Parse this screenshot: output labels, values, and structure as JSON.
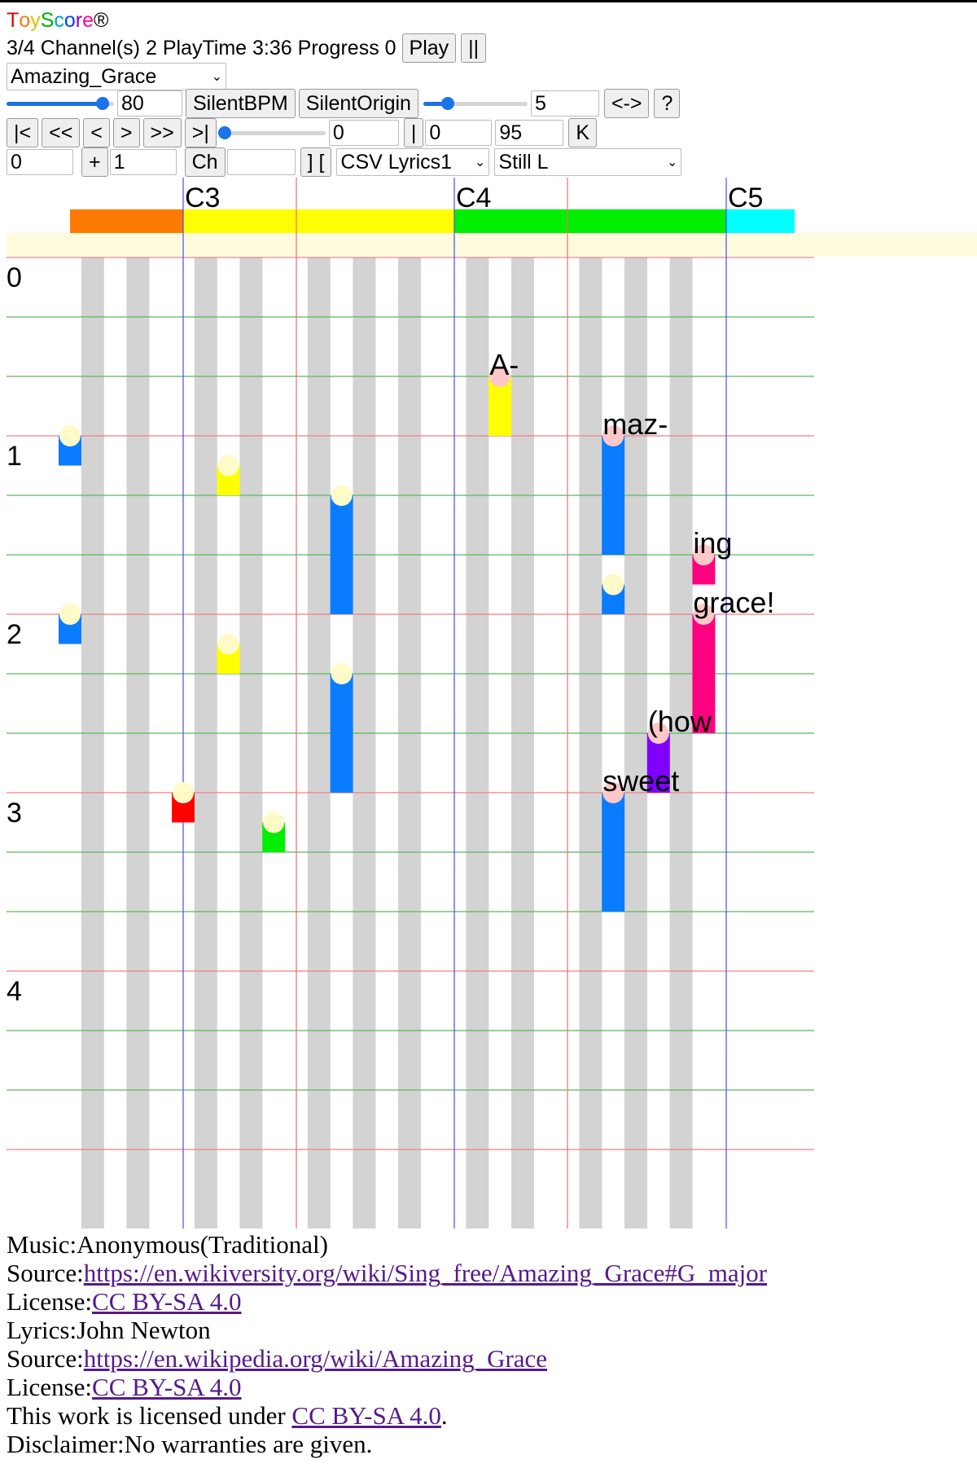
{
  "app": {
    "title_letters": [
      "T",
      "o",
      "y",
      "S",
      "c",
      "o",
      "r",
      "e"
    ],
    "title_colors": [
      "#e00000",
      "#ff7700",
      "#e0c000",
      "#00b000",
      "#00a0d0",
      "#0040ff",
      "#9000d0",
      "#ff00a0"
    ],
    "registered": "®"
  },
  "status": {
    "channels": "3/4",
    "channels_label": "Channel(s)",
    "channel_count": "2",
    "playtime_label": "PlayTime",
    "playtime": "3:36",
    "progress_label": "Progress",
    "progress": "0",
    "play_button": "Play",
    "pause_button": "||"
  },
  "song_select": {
    "value": "Amazing_Grace"
  },
  "tempo_row": {
    "bpm_slider_level": 0.95,
    "bpm_value": "80",
    "silent_bpm_button": "SilentBPM",
    "silent_origin_button": "SilentOrigin",
    "size_slider_level": 0.2,
    "size_value": "5",
    "swap_button": "<->",
    "help_button": "?"
  },
  "nav_row": {
    "first_button": "|<",
    "rewind_button": "<<",
    "prev_button": "<",
    "next_button": ">",
    "forward_button": ">>",
    "last_button": ">|",
    "position_slider_level": 0.0,
    "position_value": "0",
    "separator_button": "|",
    "offset_value": "0",
    "velocity_value": "95",
    "key_button": "K"
  },
  "channel_row": {
    "start_value": "0",
    "plus_button": "+",
    "step_value": "1",
    "ch_button": "Ch",
    "ch_value": "",
    "bracket_button": "] [",
    "lyrics_select": "CSV Lyrics1",
    "mode_select": "Still L"
  },
  "keyboard": {
    "octave_labels": [
      "C3",
      "C4",
      "C5"
    ],
    "colors": [
      "#ff7a00",
      "#ffff00",
      "#00ee00",
      "#00ffff"
    ]
  },
  "roll": {
    "measure_labels": [
      "0",
      "1",
      "2",
      "3",
      "4"
    ],
    "notes": [
      {
        "key": 0,
        "beat": 3.0,
        "length": 0.5,
        "color": "#0a7cff"
      },
      {
        "key": 0,
        "beat": 6.0,
        "length": 0.5,
        "color": "#0a7cff"
      },
      {
        "key": 7,
        "beat": 3.5,
        "length": 0.5,
        "color": "#ffff00"
      },
      {
        "key": 7,
        "beat": 6.5,
        "length": 0.5,
        "color": "#ffff00"
      },
      {
        "key": 12,
        "beat": 4.0,
        "length": 2.0,
        "color": "#0a7cff"
      },
      {
        "key": 12,
        "beat": 7.0,
        "length": 2.0,
        "color": "#0a7cff"
      },
      {
        "key": 5,
        "beat": 9.0,
        "length": 0.5,
        "color": "#ff0000"
      },
      {
        "key": 9,
        "beat": 9.5,
        "length": 0.5,
        "color": "#00ee00"
      },
      {
        "key": 19,
        "beat": 2.0,
        "length": 1.0,
        "color": "#ffff00",
        "lyric": "A-"
      },
      {
        "key": 24,
        "beat": 3.0,
        "length": 2.0,
        "color": "#0a7cff",
        "lyric": "maz-"
      },
      {
        "key": 24,
        "beat": 5.5,
        "length": 0.5,
        "color": "#0a7cff"
      },
      {
        "key": 28,
        "beat": 5.0,
        "length": 0.5,
        "color": "#ff0080",
        "lyric": "ing"
      },
      {
        "key": 28,
        "beat": 6.0,
        "length": 2.0,
        "color": "#ff0080",
        "lyric": "grace!"
      },
      {
        "key": 26,
        "beat": 8.0,
        "length": 1.0,
        "color": "#8000ff",
        "lyric": "(how"
      },
      {
        "key": 24,
        "beat": 9.0,
        "length": 2.0,
        "color": "#0a7cff",
        "lyric": "sweet"
      }
    ]
  },
  "credits": {
    "music_label": "Music:",
    "music": "Anonymous(Traditional)",
    "source_label": "Source:",
    "music_source": "https://en.wikiversity.org/wiki/Sing_free/Amazing_Grace#G_major",
    "license_label": "License:",
    "music_license": "CC BY-SA 4.0",
    "lyrics_label": "Lyrics:",
    "lyrics": "John Newton",
    "lyrics_source": "https://en.wikipedia.org/wiki/Amazing_Grace",
    "lyrics_license": "CC BY-SA 4.0",
    "work_license_prefix": "This work is licensed under ",
    "work_license": "CC BY-SA 4.0",
    "work_license_suffix": ".",
    "disclaimer_label": "Disclaimer:",
    "disclaimer": "No warranties are given."
  }
}
